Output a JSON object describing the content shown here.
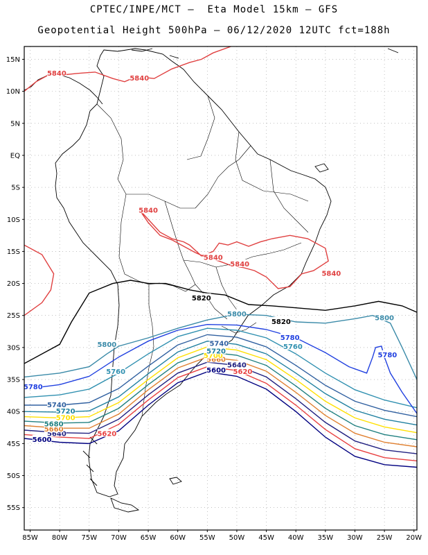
{
  "title_line1": "CPTEC/INPE/MCT –  Eta Model 15km – GFS",
  "title_line2": "Geopotential Height 500hPa – 06/12/2020 12UTC fct=188h",
  "map": {
    "lon_range": [
      -86,
      -19.5
    ],
    "lat_range": [
      -58.5,
      17
    ],
    "lat_ticks": [
      {
        "v": 15,
        "label": "15N"
      },
      {
        "v": 10,
        "label": "10N"
      },
      {
        "v": 5,
        "label": "5N"
      },
      {
        "v": 0,
        "label": "EQ"
      },
      {
        "v": -5,
        "label": "5S"
      },
      {
        "v": -10,
        "label": "10S"
      },
      {
        "v": -15,
        "label": "15S"
      },
      {
        "v": -20,
        "label": "20S"
      },
      {
        "v": -25,
        "label": "25S"
      },
      {
        "v": -30,
        "label": "30S"
      },
      {
        "v": -35,
        "label": "35S"
      },
      {
        "v": -40,
        "label": "40S"
      },
      {
        "v": -45,
        "label": "45S"
      },
      {
        "v": -50,
        "label": "50S"
      },
      {
        "v": -55,
        "label": "55S"
      }
    ],
    "lon_ticks": [
      {
        "v": -85,
        "label": "85W"
      },
      {
        "v": -80,
        "label": "80W"
      },
      {
        "v": -75,
        "label": "75W"
      },
      {
        "v": -70,
        "label": "70W"
      },
      {
        "v": -65,
        "label": "65W"
      },
      {
        "v": -60,
        "label": "60W"
      },
      {
        "v": -55,
        "label": "55W"
      },
      {
        "v": -50,
        "label": "50W"
      },
      {
        "v": -45,
        "label": "45W"
      },
      {
        "v": -40,
        "label": "40W"
      },
      {
        "v": -35,
        "label": "35W"
      },
      {
        "v": -30,
        "label": "30W"
      },
      {
        "v": -25,
        "label": "25W"
      },
      {
        "v": -20,
        "label": "20W"
      }
    ],
    "grid": "dotted"
  },
  "contours": [
    {
      "value": "5600",
      "color": "#000080",
      "points": [
        [
          -86,
          -44.2
        ],
        [
          -80,
          -44.8
        ],
        [
          -75,
          -45
        ],
        [
          -70,
          -43
        ],
        [
          -65,
          -39
        ],
        [
          -60,
          -35.5
        ],
        [
          -55,
          -33.8
        ],
        [
          -50,
          -34.5
        ],
        [
          -45,
          -36.5
        ],
        [
          -40,
          -40
        ],
        [
          -35,
          -44
        ],
        [
          -30,
          -47
        ],
        [
          -25,
          -48.3
        ],
        [
          -19.5,
          -48.7
        ]
      ],
      "labels": [
        {
          "lon": -83,
          "lat": -44.4,
          "text": "5600"
        },
        {
          "lon": -53.5,
          "lat": -33.6,
          "text": "5600"
        }
      ]
    },
    {
      "value": "5620",
      "color": "#e84040",
      "points": [
        [
          -86,
          -43.6
        ],
        [
          -80,
          -44
        ],
        [
          -75,
          -44.2
        ],
        [
          -70,
          -42
        ],
        [
          -65,
          -38.2
        ],
        [
          -60,
          -34.7
        ],
        [
          -55,
          -33
        ],
        [
          -50,
          -33.6
        ],
        [
          -45,
          -35.6
        ],
        [
          -40,
          -39
        ],
        [
          -35,
          -42.8
        ],
        [
          -30,
          -45.8
        ],
        [
          -25,
          -47.2
        ],
        [
          -19.5,
          -47.7
        ]
      ],
      "labels": [
        {
          "lon": -72,
          "lat": -43.5,
          "text": "5620"
        },
        {
          "lon": -49,
          "lat": -33.8,
          "text": "5620"
        }
      ]
    },
    {
      "value": "5640",
      "color": "#202080",
      "points": [
        [
          -86,
          -42.9
        ],
        [
          -80,
          -43.3
        ],
        [
          -75,
          -43.4
        ],
        [
          -70,
          -41.2
        ],
        [
          -65,
          -37.4
        ],
        [
          -60,
          -34
        ],
        [
          -55,
          -32.3
        ],
        [
          -50,
          -32.8
        ],
        [
          -45,
          -34.6
        ],
        [
          -40,
          -38
        ],
        [
          -35,
          -41.7
        ],
        [
          -30,
          -44.6
        ],
        [
          -25,
          -46
        ],
        [
          -19.5,
          -46.6
        ]
      ],
      "labels": [
        {
          "lon": -80.5,
          "lat": -43.5,
          "text": "5640"
        },
        {
          "lon": -50,
          "lat": -32.8,
          "text": "5640"
        }
      ]
    },
    {
      "value": "5660",
      "color": "#e08030",
      "points": [
        [
          -86,
          -42.2
        ],
        [
          -80,
          -42.6
        ],
        [
          -75,
          -42.6
        ],
        [
          -70,
          -40.4
        ],
        [
          -65,
          -36.6
        ],
        [
          -60,
          -33.2
        ],
        [
          -55,
          -31.5
        ],
        [
          -50,
          -32
        ],
        [
          -45,
          -33.7
        ],
        [
          -40,
          -37
        ],
        [
          -35,
          -40.6
        ],
        [
          -30,
          -43.4
        ],
        [
          -25,
          -44.8
        ],
        [
          -19.5,
          -45.5
        ]
      ],
      "labels": [
        {
          "lon": -81,
          "lat": -42.8,
          "text": "5660"
        },
        {
          "lon": -53.5,
          "lat": -31.9,
          "text": "5660"
        }
      ]
    },
    {
      "value": "5680",
      "color": "#208080",
      "points": [
        [
          -86,
          -41.5
        ],
        [
          -80,
          -41.8
        ],
        [
          -75,
          -41.7
        ],
        [
          -70,
          -39.5
        ],
        [
          -65,
          -35.8
        ],
        [
          -60,
          -32.4
        ],
        [
          -55,
          -30.7
        ],
        [
          -50,
          -31.2
        ],
        [
          -45,
          -32.8
        ],
        [
          -40,
          -36
        ],
        [
          -35,
          -39.5
        ],
        [
          -30,
          -42.2
        ],
        [
          -25,
          -43.6
        ],
        [
          -19.5,
          -44.4
        ]
      ],
      "labels": [
        {
          "lon": -81,
          "lat": -42,
          "text": "5680"
        }
      ]
    },
    {
      "value": "5700",
      "color": "#ffe000",
      "points": [
        [
          -86,
          -40.8
        ],
        [
          -80,
          -41
        ],
        [
          -75,
          -40.8
        ],
        [
          -70,
          -38.6
        ],
        [
          -65,
          -35
        ],
        [
          -60,
          -31.6
        ],
        [
          -55,
          -29.9
        ],
        [
          -50,
          -30.4
        ],
        [
          -45,
          -31.9
        ],
        [
          -40,
          -35
        ],
        [
          -35,
          -38.4
        ],
        [
          -30,
          -41
        ],
        [
          -25,
          -42.4
        ],
        [
          -19.5,
          -43.3
        ]
      ],
      "labels": [
        {
          "lon": -79,
          "lat": -41,
          "text": "5700"
        },
        {
          "lon": -54,
          "lat": -31.3,
          "text": "5700"
        }
      ]
    },
    {
      "value": "5720",
      "color": "#2080a0",
      "points": [
        [
          -86,
          -40
        ],
        [
          -80,
          -40.1
        ],
        [
          -75,
          -39.9
        ],
        [
          -70,
          -37.7
        ],
        [
          -65,
          -34.1
        ],
        [
          -60,
          -30.7
        ],
        [
          -55,
          -29
        ],
        [
          -50,
          -29.5
        ],
        [
          -45,
          -31
        ],
        [
          -40,
          -34
        ],
        [
          -35,
          -37.2
        ],
        [
          -30,
          -39.8
        ],
        [
          -25,
          -41.2
        ],
        [
          -19.5,
          -42.1
        ]
      ],
      "labels": [
        {
          "lon": -79,
          "lat": -40,
          "text": "5720"
        },
        {
          "lon": -53.5,
          "lat": -30.6,
          "text": "5720"
        }
      ]
    },
    {
      "value": "5740",
      "color": "#3060a0",
      "points": [
        [
          -86,
          -39
        ],
        [
          -80,
          -39
        ],
        [
          -75,
          -38.6
        ],
        [
          -70,
          -36.4
        ],
        [
          -65,
          -32.9
        ],
        [
          -60,
          -29.6
        ],
        [
          -55,
          -28
        ],
        [
          -50,
          -28.4
        ],
        [
          -45,
          -29.9
        ],
        [
          -40,
          -32.8
        ],
        [
          -35,
          -35.9
        ],
        [
          -30,
          -38.4
        ],
        [
          -25,
          -39.8
        ],
        [
          -19.5,
          -40.8
        ]
      ],
      "labels": [
        {
          "lon": -80.5,
          "lat": -39,
          "text": "5740"
        },
        {
          "lon": -53,
          "lat": -29.4,
          "text": "5740"
        }
      ]
    },
    {
      "value": "5760",
      "color": "#3090b0",
      "points": [
        [
          -86,
          -37.8
        ],
        [
          -80,
          -37.4
        ],
        [
          -75,
          -36.5
        ],
        [
          -70,
          -34
        ],
        [
          -65,
          -31
        ],
        [
          -60,
          -28.3
        ],
        [
          -55,
          -27
        ],
        [
          -50,
          -27.3
        ],
        [
          -45,
          -28.5
        ],
        [
          -40,
          -31
        ],
        [
          -35,
          -34
        ],
        [
          -30,
          -36.6
        ],
        [
          -25,
          -38.2
        ],
        [
          -19.5,
          -39.4
        ]
      ],
      "labels": [
        {
          "lon": -70.5,
          "lat": -33.8,
          "text": "5760"
        },
        {
          "lon": -40.5,
          "lat": -29.9,
          "text": "5760"
        }
      ]
    },
    {
      "value": "5780",
      "color": "#2040e0",
      "points": [
        [
          -86,
          -36.5
        ],
        [
          -80,
          -35.8
        ],
        [
          -75,
          -34.5
        ],
        [
          -70,
          -31.5
        ],
        [
          -65,
          -29
        ],
        [
          -60,
          -27.3
        ],
        [
          -55,
          -26.4
        ],
        [
          -50,
          -26.5
        ],
        [
          -45,
          -27.2
        ],
        [
          -40,
          -28.5
        ],
        [
          -35,
          -30.8
        ],
        [
          -31,
          -33
        ],
        [
          -28,
          -34
        ],
        [
          -27,
          -31.5
        ],
        [
          -26.5,
          -30
        ],
        [
          -25.5,
          -29.8
        ],
        [
          -25,
          -31.5
        ],
        [
          -24,
          -34
        ],
        [
          -22,
          -37
        ],
        [
          -19.5,
          -40.3
        ]
      ],
      "labels": [
        {
          "lon": -84.5,
          "lat": -36.2,
          "text": "5780"
        },
        {
          "lon": -41,
          "lat": -28.5,
          "text": "5780"
        },
        {
          "lon": -24.5,
          "lat": -31.2,
          "text": "5780"
        }
      ]
    },
    {
      "value": "5800",
      "color": "#3a8aa8",
      "points": [
        [
          -86,
          -34.6
        ],
        [
          -80,
          -34
        ],
        [
          -75,
          -33
        ],
        [
          -72,
          -31
        ],
        [
          -70,
          -29.8
        ],
        [
          -65,
          -28.5
        ],
        [
          -60,
          -27
        ],
        [
          -55,
          -25.7
        ],
        [
          -50,
          -24.8
        ],
        [
          -45,
          -25
        ],
        [
          -40,
          -26
        ],
        [
          -35,
          -26.2
        ],
        [
          -30,
          -25.5
        ],
        [
          -27,
          -25
        ],
        [
          -24,
          -26.2
        ],
        [
          -22,
          -30
        ],
        [
          -20,
          -34
        ],
        [
          -19.5,
          -35
        ]
      ],
      "labels": [
        {
          "lon": -72,
          "lat": -29.6,
          "text": "5800"
        },
        {
          "lon": -50,
          "lat": -24.8,
          "text": "5800"
        },
        {
          "lon": -25,
          "lat": -25.4,
          "text": "5800"
        }
      ]
    },
    {
      "value": "5820",
      "color": "#000000",
      "points": [
        [
          -86,
          -32.5
        ],
        [
          -80,
          -29.5
        ],
        [
          -78,
          -26
        ],
        [
          -75,
          -21.5
        ],
        [
          -71,
          -20
        ],
        [
          -68,
          -19.5
        ],
        [
          -65,
          -20
        ],
        [
          -62,
          -20
        ],
        [
          -58,
          -21
        ],
        [
          -55,
          -21.5
        ],
        [
          -52,
          -21.8
        ],
        [
          -48,
          -23.3
        ],
        [
          -44,
          -23.5
        ],
        [
          -40,
          -23.8
        ],
        [
          -35,
          -24.2
        ],
        [
          -30,
          -23.5
        ],
        [
          -26,
          -22.8
        ],
        [
          -22,
          -23.5
        ],
        [
          -19.5,
          -24.5
        ]
      ],
      "labels": [
        {
          "lon": -56,
          "lat": -22.3,
          "text": "5820"
        },
        {
          "lon": -42.5,
          "lat": -26,
          "text": "5820"
        }
      ]
    }
  ],
  "contours_5840": [
    {
      "value": "5840",
      "color": "#e04040",
      "points": [
        [
          -86,
          10
        ],
        [
          -84,
          11.5
        ],
        [
          -82,
          12.5
        ],
        [
          -80,
          12.5
        ],
        [
          -77,
          12.8
        ],
        [
          -74,
          13
        ],
        [
          -71,
          12
        ],
        [
          -69,
          11.5
        ],
        [
          -67,
          12.3
        ],
        [
          -64,
          12
        ],
        [
          -61,
          13.5
        ],
        [
          -58,
          14.5
        ],
        [
          -56,
          15
        ],
        [
          -54,
          16
        ],
        [
          -51,
          17
        ]
      ],
      "labels": [
        [
          -80.5,
          12.8
        ],
        [
          -66.5,
          12
        ]
      ]
    },
    {
      "value": "5840",
      "color": "#e04040",
      "points": [
        [
          -86,
          -14
        ],
        [
          -83,
          -15.5
        ],
        [
          -81,
          -18.5
        ],
        [
          -81.5,
          -21
        ],
        [
          -83,
          -23
        ],
        [
          -86,
          -25
        ]
      ],
      "labels": []
    },
    {
      "value": "5840",
      "color": "#e04040",
      "points": [
        [
          -66.5,
          -8.5
        ],
        [
          -64.5,
          -10.5
        ],
        [
          -63,
          -12
        ],
        [
          -61,
          -13
        ],
        [
          -59,
          -13.5
        ],
        [
          -58,
          -14
        ],
        [
          -56,
          -15.7
        ],
        [
          -54,
          -15
        ],
        [
          -53,
          -13.7
        ],
        [
          -51.5,
          -14
        ],
        [
          -50,
          -13.5
        ],
        [
          -48,
          -14.2
        ],
        [
          -46,
          -13.5
        ],
        [
          -44,
          -13
        ],
        [
          -41,
          -12.5
        ],
        [
          -38,
          -13
        ],
        [
          -35,
          -14.5
        ],
        [
          -34.5,
          -16.5
        ],
        [
          -37,
          -18
        ],
        [
          -39,
          -18.5
        ],
        [
          -41,
          -20.5
        ],
        [
          -43,
          -20.8
        ],
        [
          -45,
          -19
        ],
        [
          -47,
          -18
        ],
        [
          -49,
          -17.5
        ],
        [
          -51,
          -17.2
        ],
        [
          -53,
          -16.5
        ],
        [
          -55,
          -16
        ],
        [
          -57,
          -15.2
        ],
        [
          -59,
          -14.2
        ],
        [
          -61,
          -13.2
        ],
        [
          -63,
          -12.5
        ],
        [
          -65,
          -10.5
        ],
        [
          -66.5,
          -8.5
        ]
      ],
      "labels": [
        [
          -65,
          -8.6
        ],
        [
          -54,
          -16
        ],
        [
          -49.5,
          -17
        ],
        [
          -34,
          -18.5
        ]
      ]
    }
  ],
  "label_5840": "5840",
  "coast_color": "#000000"
}
